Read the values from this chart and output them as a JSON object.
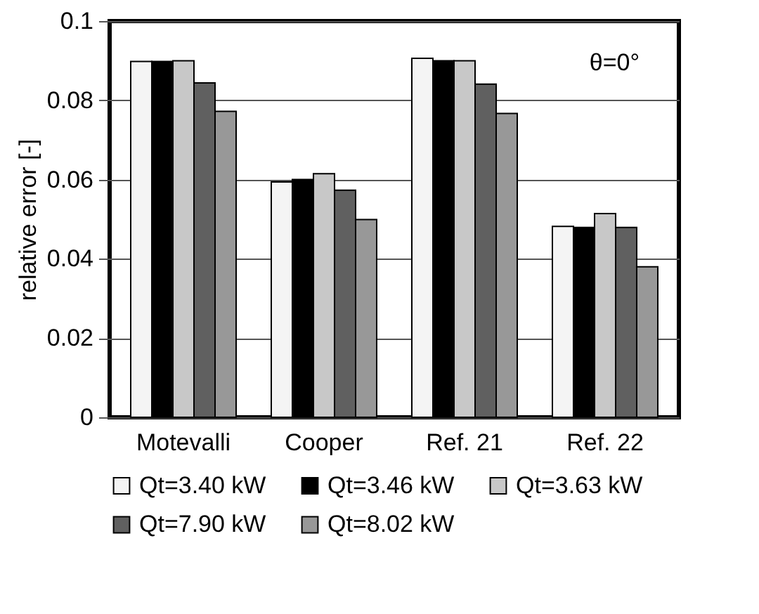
{
  "chart_data": {
    "type": "bar",
    "ylabel": "relative error [-]",
    "categories": [
      "Motevalli",
      "Cooper",
      "Ref. 21",
      "Ref. 22"
    ],
    "series": [
      {
        "name": "Qt=3.40 kW",
        "color": "#f4f4f4",
        "values": [
          0.0898,
          0.0594,
          0.0906,
          0.0482
        ]
      },
      {
        "name": "Qt=3.46 kW",
        "color": "#000000",
        "values": [
          0.0898,
          0.06,
          0.09,
          0.0479
        ]
      },
      {
        "name": "Qt=3.63 kW",
        "color": "#c8c8c8",
        "values": [
          0.09,
          0.0615,
          0.09,
          0.0514
        ]
      },
      {
        "name": "Qt=7.90 kW",
        "color": "#606060",
        "values": [
          0.0844,
          0.0573,
          0.0841,
          0.0479
        ]
      },
      {
        "name": "Qt=8.02 kW",
        "color": "#989898",
        "values": [
          0.0772,
          0.0499,
          0.0767,
          0.038
        ]
      }
    ],
    "ylim": [
      0,
      0.1
    ],
    "yticks": [
      0,
      0.02,
      0.04,
      0.06,
      0.08,
      0.1
    ],
    "grid": "y",
    "legend": "bottom",
    "annotations": [
      "θ=0°"
    ]
  }
}
